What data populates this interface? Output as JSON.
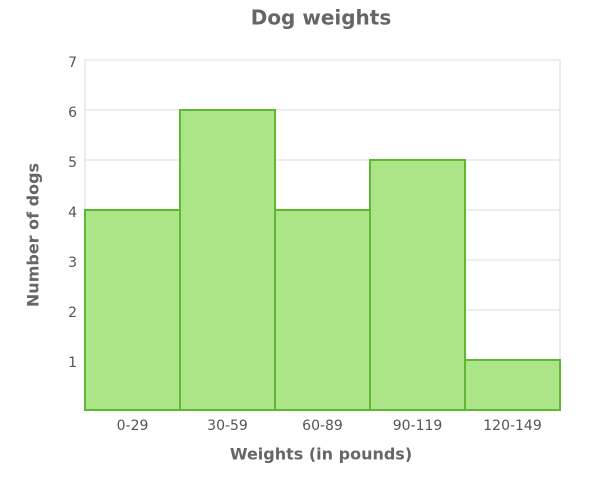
{
  "chart_data": {
    "type": "bar",
    "title": "Dog weights",
    "x_label": "Weights (in pounds)",
    "y_label": "Number of dogs",
    "categories": [
      "0-29",
      "30-59",
      "60-89",
      "90-119",
      "120-149"
    ],
    "values": [
      4,
      6,
      4,
      5,
      1
    ],
    "color": "#abe587",
    "edge_color": "#5fb832",
    "ylim": [
      0,
      7
    ],
    "yticks": [
      1,
      2,
      3,
      4,
      5,
      6,
      7
    ],
    "grid": true
  }
}
